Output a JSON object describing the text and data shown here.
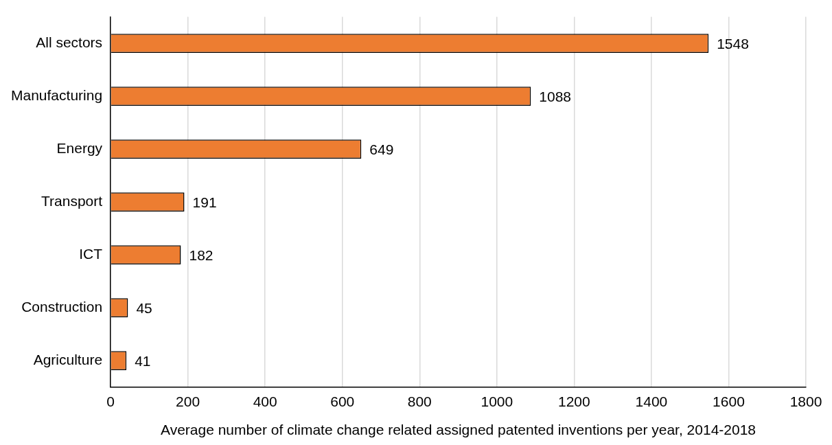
{
  "chart_data": {
    "type": "bar",
    "orientation": "horizontal",
    "categories": [
      "All sectors",
      "Manufacturing",
      "Energy",
      "Transport",
      "ICT",
      "Construction",
      "Agriculture"
    ],
    "values": [
      1548,
      1088,
      649,
      191,
      182,
      45,
      41
    ],
    "color": "#ed7d31",
    "xlabel": "Average number of climate change related assigned patented inventions per year, 2014-2018",
    "xlim": [
      0,
      1800
    ],
    "xticks": [
      0,
      200,
      400,
      600,
      800,
      1000,
      1200,
      1400,
      1600,
      1800
    ],
    "grid": "x",
    "data_labels": true,
    "legend": false
  }
}
